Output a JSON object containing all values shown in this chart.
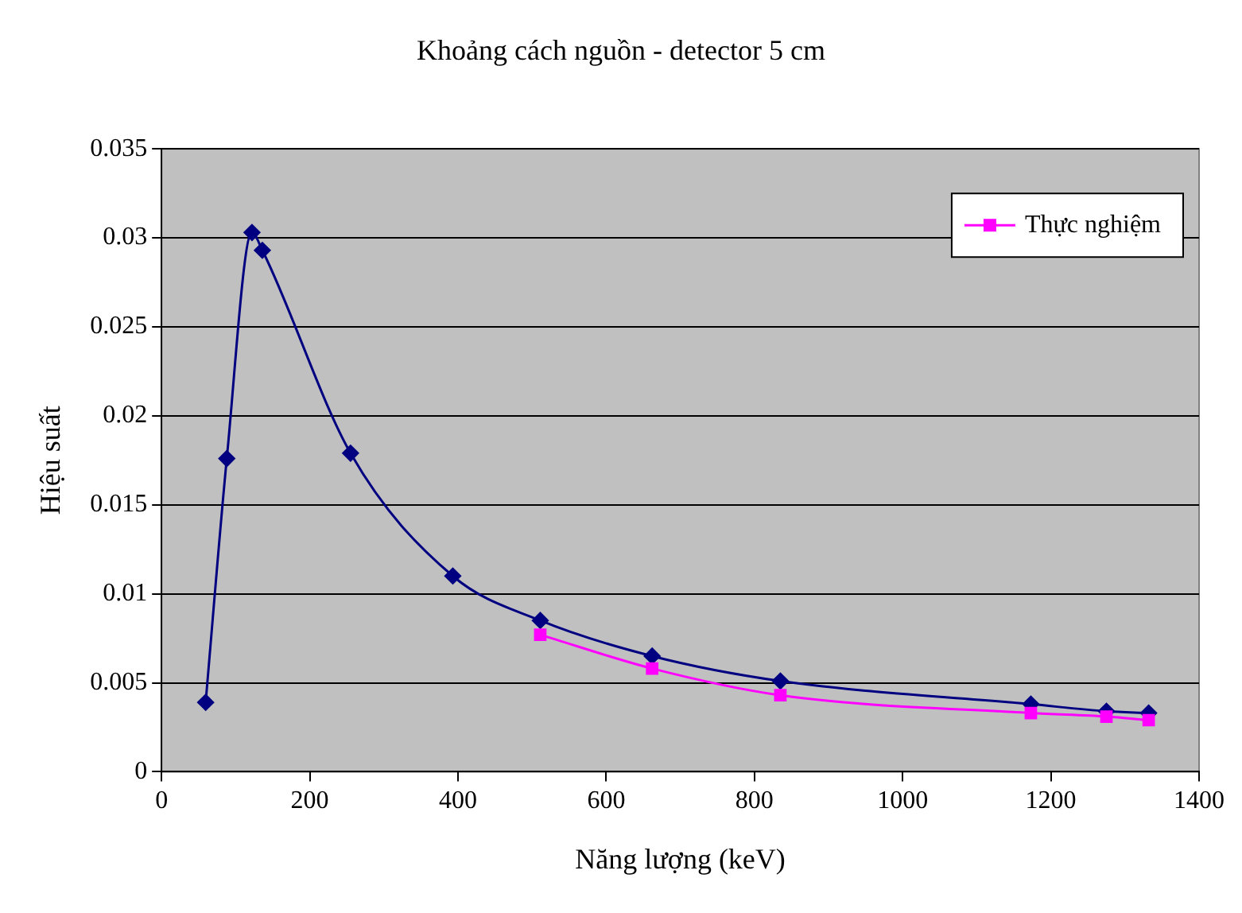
{
  "chart_data": {
    "type": "line",
    "title": "Khoảng cách nguồn - detector 5 cm",
    "xlabel": "Năng lượng (keV)",
    "ylabel": "Hiệu suất",
    "xlim": [
      0,
      1400
    ],
    "xticks": [
      0,
      200,
      400,
      600,
      800,
      1000,
      1200,
      1400
    ],
    "ylim": [
      0,
      0.035
    ],
    "yticks": [
      0,
      0.005,
      0.01,
      0.015,
      0.02,
      0.025,
      0.03,
      0.035
    ],
    "grid": "y",
    "legend": "top right",
    "series": [
      {
        "color": "#000080",
        "marker": "diamond",
        "x": [
          59.5,
          88,
          122,
          136,
          255,
          393,
          511,
          662,
          835,
          1173,
          1275,
          1332
        ],
        "values": [
          0.0039,
          0.0176,
          0.0303,
          0.0293,
          0.0179,
          0.011,
          0.0085,
          0.0065,
          0.0051,
          0.0038,
          0.0034,
          0.0033
        ]
      },
      {
        "name": "Thực nghiệm",
        "color": "#ff00ff",
        "marker": "square",
        "x": [
          511,
          662,
          835,
          1173,
          1275,
          1332
        ],
        "values": [
          0.0077,
          0.0058,
          0.0043,
          0.0033,
          0.0031,
          0.0029
        ]
      }
    ]
  }
}
